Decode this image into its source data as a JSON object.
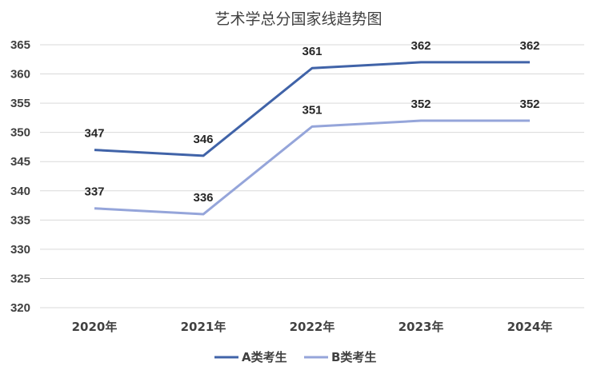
{
  "chart_data": {
    "type": "line",
    "title": "艺术学总分国家线趋势图",
    "categories": [
      "2020年",
      "2021年",
      "2022年",
      "2023年",
      "2024年"
    ],
    "ylim": [
      320,
      365
    ],
    "yticks": [
      320,
      325,
      330,
      335,
      340,
      345,
      350,
      355,
      360,
      365
    ],
    "grid": true,
    "legend_position": "bottom",
    "series": [
      {
        "name": "A类考生",
        "color": "#4063a8",
        "values": [
          347,
          346,
          361,
          362,
          362
        ]
      },
      {
        "name": "B类考生",
        "color": "#95a5da",
        "values": [
          337,
          336,
          351,
          352,
          352
        ]
      }
    ]
  }
}
